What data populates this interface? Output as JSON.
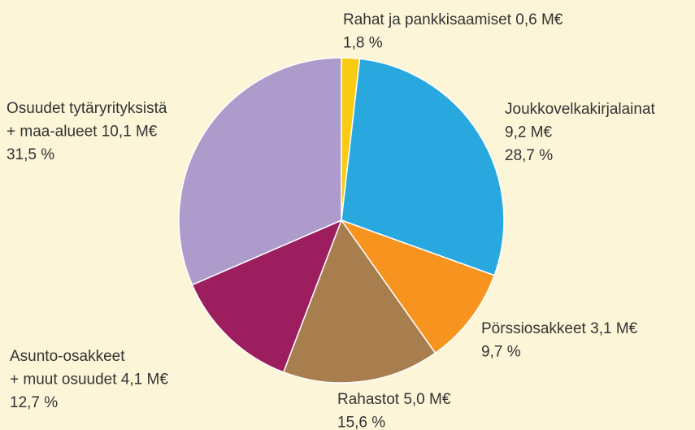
{
  "chart_data": {
    "type": "pie",
    "categories": [
      [
        "Rahat ja pankkisaamiset"
      ],
      [
        "Joukkovelkakirjalainat"
      ],
      [
        "Pörssiosakkeet"
      ],
      [
        "Rahastot"
      ],
      [
        "Asunto-osakkeet",
        "+ muut osuudet"
      ],
      [
        "Osuudet tytäryrityksistä",
        "+ maa-alueet"
      ]
    ],
    "amounts": [
      0.6,
      9.2,
      3.1,
      5.0,
      4.1,
      10.1
    ],
    "amount_labels": [
      "0,6 M€",
      "9,2 M€",
      "3,1 M€",
      "5,0 M€",
      "4,1 M€",
      "10,1 M€"
    ],
    "values": [
      1.8,
      28.7,
      9.7,
      15.6,
      12.7,
      31.5
    ],
    "value_labels": [
      "1,8 %",
      "28,7 %",
      "9,7 %",
      "15,6 %",
      "12,7 %",
      "31,5 %"
    ],
    "colors": [
      "#f9cb12",
      "#29a8e0",
      "#f7941f",
      "#a97e4f",
      "#9c1e5e",
      "#ad9bcb"
    ]
  }
}
